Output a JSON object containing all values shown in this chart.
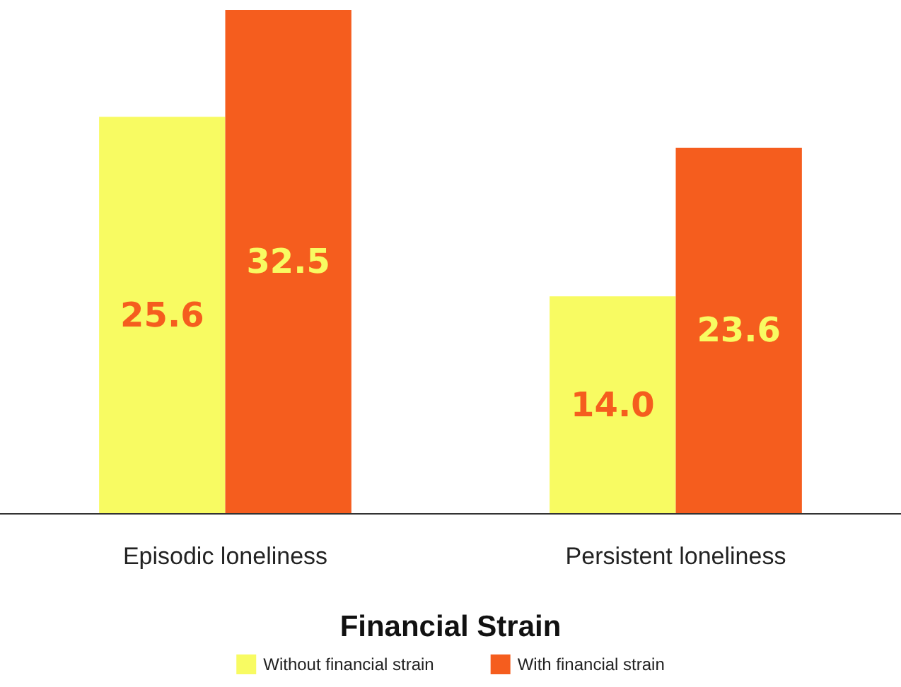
{
  "chart_data": {
    "type": "bar",
    "xlabel": "Financial Strain",
    "categories": [
      "Episodic loneliness",
      "Persistent loneliness"
    ],
    "series": [
      {
        "name": "Without financial strain",
        "color": "#f8fb62",
        "values": [
          25.6,
          14.0
        ],
        "value_labels": [
          "25.6",
          "14.0"
        ]
      },
      {
        "name": "With financial strain",
        "color": "#f55d1e",
        "values": [
          32.5,
          23.6
        ],
        "value_labels": [
          "32.5",
          "23.6"
        ]
      }
    ],
    "legend": "bottom"
  }
}
